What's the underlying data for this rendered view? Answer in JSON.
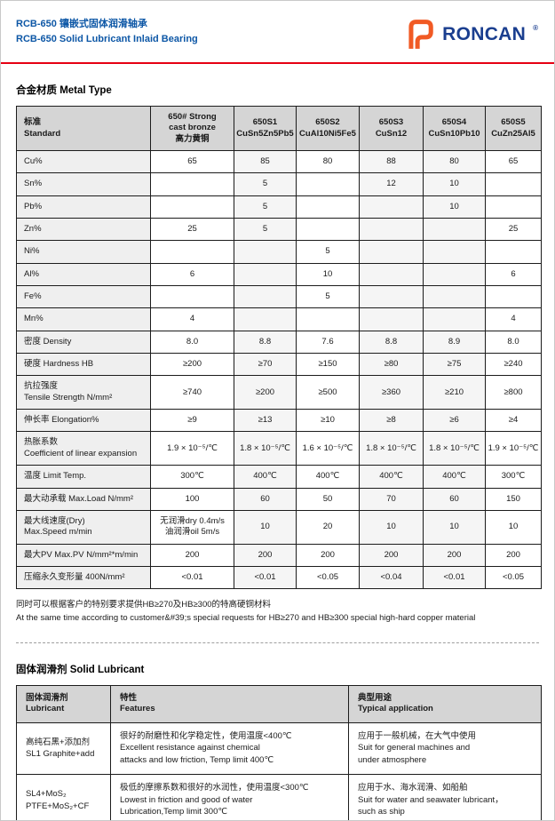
{
  "page": {
    "title_zh": "RCB-650 镶嵌式固体润滑轴承",
    "title_en": "RCB-650 Solid Lubricant Inlaid Bearing",
    "brand": {
      "name": "RONCAN",
      "registered": "®",
      "logo_color": "#f15a24",
      "text_color": "#1a3e8f"
    },
    "accent_red": "#e60012"
  },
  "section1": {
    "heading": "合金材质 Metal Type"
  },
  "metal_table": {
    "columns": [
      "标准\nStandard",
      "650# Strong\ncast bronze\n高力黄铜",
      "650S1\nCuSn5Zn5Pb5",
      "650S2\nCuAl10Ni5Fe5",
      "650S3\nCuSn12",
      "650S4\nCuSn10Pb10",
      "650S5\nCuZn25Al5"
    ],
    "shaded_columns": [
      1,
      3,
      4
    ],
    "rows": [
      {
        "label": "Cu%",
        "values": [
          "65",
          "85",
          "80",
          "88",
          "80",
          "65"
        ]
      },
      {
        "label": "Sn%",
        "values": [
          "",
          "5",
          "",
          "12",
          "10",
          ""
        ]
      },
      {
        "label": "Pb%",
        "values": [
          "",
          "5",
          "",
          "",
          "10",
          ""
        ]
      },
      {
        "label": "Zn%",
        "values": [
          "25",
          "5",
          "",
          "",
          "",
          "25"
        ]
      },
      {
        "label": "Ni%",
        "values": [
          "",
          "",
          "5",
          "",
          "",
          ""
        ]
      },
      {
        "label": "Al%",
        "values": [
          "6",
          "",
          "10",
          "",
          "",
          "6"
        ]
      },
      {
        "label": "Fe%",
        "values": [
          "",
          "",
          "5",
          "",
          "",
          ""
        ]
      },
      {
        "label": "Mn%",
        "values": [
          "4",
          "",
          "",
          "",
          "",
          "4"
        ]
      },
      {
        "label": "密度 Density",
        "values": [
          "8.0",
          "8.8",
          "7.6",
          "8.8",
          "8.9",
          "8.0"
        ]
      },
      {
        "label": "硬度 Hardness HB",
        "values": [
          "≥200",
          "≥70",
          "≥150",
          "≥80",
          "≥75",
          "≥240"
        ]
      },
      {
        "label": "抗拉强度\nTensile Strength N/mm²",
        "values": [
          "≥740",
          "≥200",
          "≥500",
          "≥360",
          "≥210",
          "≥800"
        ]
      },
      {
        "label": "伸长率 Elongation%",
        "values": [
          "≥9",
          "≥13",
          "≥10",
          "≥8",
          "≥6",
          "≥4"
        ]
      },
      {
        "label": "热胀系数\nCoefficient of linear expansion",
        "values": [
          "1.9 × 10⁻⁵/℃",
          "1.8 × 10⁻⁵/℃",
          "1.6 × 10⁻⁵/℃",
          "1.8 × 10⁻⁵/℃",
          "1.8 × 10⁻⁵/℃",
          "1.9 × 10⁻⁵/℃"
        ]
      },
      {
        "label": "温度 Limit Temp.",
        "values": [
          "300℃",
          "400℃",
          "400℃",
          "400℃",
          "400℃",
          "300℃"
        ]
      },
      {
        "label": "最大动承载 Max.Load N/mm²",
        "values": [
          "100",
          "60",
          "50",
          "70",
          "60",
          "150"
        ]
      },
      {
        "label": "最大线速度(Dry)\nMax.Speed m/min",
        "values": [
          "无润滑dry 0.4m/s\n油润滑oil  5m/s",
          "10",
          "20",
          "10",
          "10",
          "10"
        ]
      },
      {
        "label": "最大PV Max.PV  N/mm²*m/min",
        "values": [
          "200",
          "200",
          "200",
          "200",
          "200",
          "200"
        ]
      },
      {
        "label": "压缩永久变形量 400N/mm²",
        "values": [
          "<0.01",
          "<0.01",
          "<0.05",
          "<0.04",
          "<0.01",
          "<0.05"
        ]
      }
    ]
  },
  "notes": {
    "line1": "同时可以根据客户的特别要求提供HB≥270及HB≥300的特高硬铜材料",
    "line2": "At the same time according to customer&#39;s special requests for HB≥270 and HB≥300 special high-hard copper material"
  },
  "section2": {
    "heading": "固体润滑剂 Solid Lubricant"
  },
  "lubricant_table": {
    "columns": [
      "固体润滑剂\nLubricant",
      "特性\nFeatures",
      "典型用途\nTypical application"
    ],
    "rows": [
      {
        "lubricant": "高纯石黑+添加剂\nSL1 Graphite+add",
        "features": "很好的耐磨性和化学稳定性，使用温度<400℃\nExcellent resistance against chemical\nattacks and low friction, Temp limit 400℃",
        "application": "应用于一般机械，在大气中使用\nSuit for general machines and\nunder atmosphere"
      },
      {
        "lubricant": "SL4+MoS₂\nPTFE+MoS₂+CF",
        "features": "极低的摩擦系数和很好的水润性，使用温度<300℃\nLowest in friction and good of water\nLubrication,Temp limit 300℃",
        "application": "应用于水、海水润滑、如船舶\nSuit for water and seawater lubricant，\nsuch as ship"
      }
    ]
  }
}
